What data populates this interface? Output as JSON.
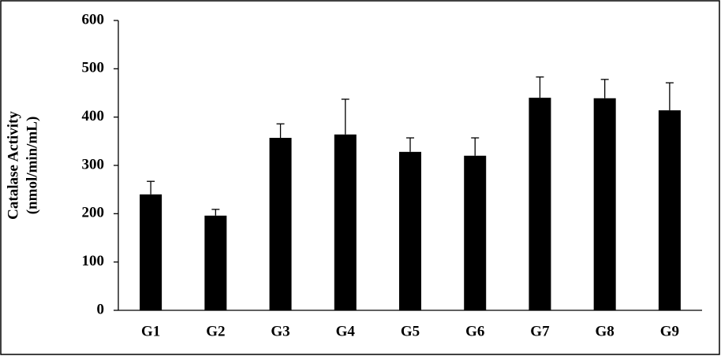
{
  "chart_data": {
    "type": "bar",
    "y_label": [
      "Catalase Activity",
      "(nmol/min/mL)"
    ],
    "categories": [
      "G1",
      "G2",
      "G3",
      "G4",
      "G5",
      "G6",
      "G7",
      "G8",
      "G9"
    ],
    "values": [
      240,
      196,
      357,
      364,
      328,
      320,
      440,
      439,
      414
    ],
    "errors": [
      27,
      13,
      29,
      73,
      29,
      37,
      43,
      39,
      57
    ],
    "color": "#000000",
    "ylim": [
      0,
      600
    ],
    "yticks": [
      0,
      100,
      200,
      300,
      400,
      500,
      600
    ],
    "grid": false
  }
}
